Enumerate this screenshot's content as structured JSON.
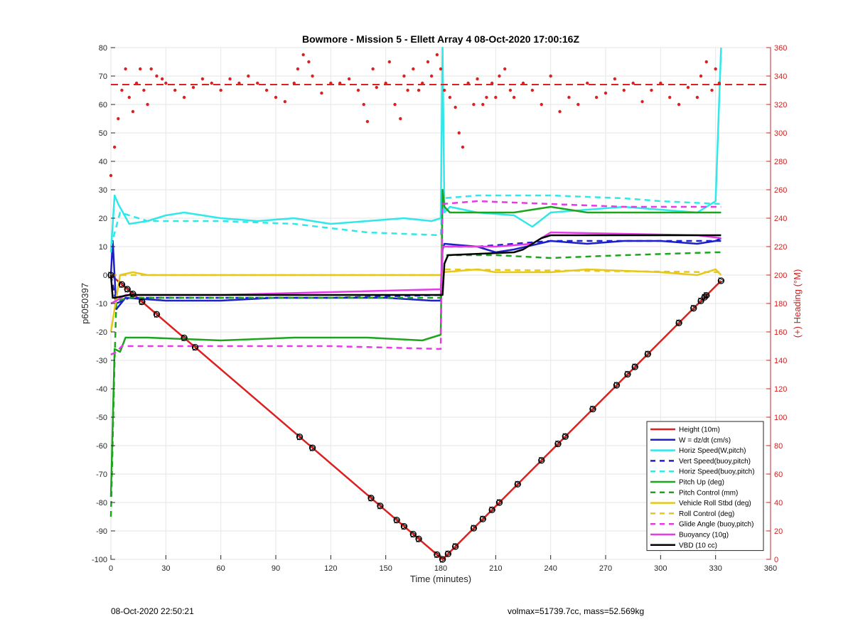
{
  "chart_data": {
    "type": "line",
    "title": "Bowmore - Mission 5 - Ellett Array 4 08-Oct-2020 17:00:16Z",
    "xlabel": "Time (minutes)",
    "ylabel": "p6050397",
    "y2label": "(+) Heading (°M)",
    "xlim": [
      0,
      360
    ],
    "ylim": [
      -100,
      80
    ],
    "y2lim": [
      0,
      360
    ],
    "xticks": [
      0,
      30,
      60,
      90,
      120,
      150,
      180,
      210,
      240,
      270,
      300,
      330,
      360
    ],
    "yticks": [
      -100,
      -90,
      -80,
      -70,
      -60,
      -50,
      -40,
      -30,
      -20,
      -10,
      0,
      10,
      20,
      30,
      40,
      50,
      60,
      70,
      80
    ],
    "y2ticks": [
      0,
      20,
      40,
      60,
      80,
      100,
      120,
      140,
      160,
      180,
      200,
      220,
      240,
      260,
      280,
      300,
      320,
      340,
      360
    ],
    "grid": true,
    "legend_position": "bottom-right",
    "colors": {
      "red": "#dd1f1f",
      "blue": "#1c20c8",
      "cyan": "#2fe8ea",
      "green": "#1ea51e",
      "yellow": "#e6c81a",
      "magenta": "#e63ae6",
      "black": "#000000",
      "heading_axis": "#cc2222"
    },
    "series": [
      {
        "name": "Height (10m)",
        "color": "red",
        "style": "solid",
        "x": [
          0,
          181,
          333
        ],
        "y": [
          0,
          -100,
          -2
        ]
      },
      {
        "name": "W = dz/dt (cm/s)",
        "color": "blue",
        "style": "solid",
        "x": [
          0,
          1,
          3,
          8,
          30,
          60,
          90,
          120,
          150,
          175,
          180,
          181,
          182,
          200,
          210,
          220,
          240,
          260,
          280,
          300,
          320,
          330,
          333
        ],
        "y": [
          0,
          12,
          -12,
          -8,
          -9,
          -9,
          -8,
          -8,
          -8,
          -9,
          -9,
          9,
          11,
          10,
          8,
          9,
          12,
          11,
          12,
          12,
          11,
          12,
          13
        ]
      },
      {
        "name": "Horiz Speed(W,pitch)",
        "color": "cyan",
        "style": "solid",
        "x": [
          0,
          2,
          4,
          10,
          20,
          30,
          40,
          60,
          80,
          100,
          120,
          140,
          160,
          175,
          180,
          181,
          182,
          185,
          200,
          220,
          230,
          240,
          260,
          280,
          300,
          320,
          330,
          333
        ],
        "y": [
          8,
          28,
          25,
          18,
          19,
          21,
          22,
          20,
          19,
          20,
          18,
          19,
          20,
          19,
          20,
          80,
          22,
          24,
          22,
          21,
          17,
          22,
          23,
          24,
          23,
          22,
          26,
          80
        ]
      },
      {
        "name": "Vert Speed(buoy,pitch)",
        "color": "blue",
        "style": "dashed",
        "x": [
          0,
          3,
          10,
          60,
          120,
          180,
          181,
          200,
          240,
          300,
          333
        ],
        "y": [
          0,
          -10,
          -8,
          -8,
          -8,
          -7,
          10,
          10,
          12,
          12,
          12
        ]
      },
      {
        "name": "Horiz Speed(buoy,pitch)",
        "color": "cyan",
        "style": "dashed",
        "x": [
          0,
          5,
          20,
          60,
          100,
          140,
          180,
          181,
          200,
          240,
          280,
          300,
          333
        ],
        "y": [
          10,
          22,
          19,
          19,
          18,
          15,
          14,
          27,
          28,
          28,
          27,
          26,
          25
        ]
      },
      {
        "name": "Pitch Up (deg)",
        "color": "green",
        "style": "solid",
        "x": [
          0,
          2,
          5,
          8,
          20,
          60,
          100,
          140,
          170,
          175,
          180,
          181,
          182,
          185,
          200,
          220,
          240,
          260,
          280,
          300,
          320,
          333
        ],
        "y": [
          -78,
          -26,
          -27,
          -22,
          -22,
          -23,
          -22,
          -22,
          -23,
          -22,
          -21,
          30,
          24,
          22,
          22,
          22,
          24,
          22,
          22,
          22,
          22,
          22
        ]
      },
      {
        "name": "Pitch Control (mm)",
        "color": "green",
        "style": "dashed",
        "x": [
          0,
          2,
          3,
          10,
          180,
          181,
          210,
          240,
          280,
          330,
          333
        ],
        "y": [
          -85,
          -30,
          -9,
          -8,
          -8,
          7,
          7,
          6,
          7,
          8,
          8
        ]
      },
      {
        "name": "Vehicle Roll Stbd (deg)",
        "color": "yellow",
        "style": "solid",
        "x": [
          0,
          5,
          12,
          20,
          40,
          60,
          100,
          140,
          160,
          180,
          181,
          200,
          210,
          240,
          260,
          300,
          320,
          330,
          333
        ],
        "y": [
          -20,
          0,
          1,
          0,
          0,
          0,
          0,
          0,
          0,
          0,
          1,
          2,
          1,
          1,
          2,
          1,
          0,
          2,
          0
        ]
      },
      {
        "name": "Roll Control (deg)",
        "color": "yellow",
        "style": "dashed",
        "x": [
          0,
          5,
          180,
          181,
          333
        ],
        "y": [
          0,
          0,
          0,
          2,
          1
        ]
      },
      {
        "name": "Glide Angle (buoy,pitch)",
        "color": "magenta",
        "style": "dashed",
        "x": [
          0,
          3,
          6,
          60,
          120,
          180,
          181,
          200,
          240,
          280,
          333
        ],
        "y": [
          -28,
          -27,
          -25,
          -25,
          -25,
          -26,
          25,
          26,
          25,
          24,
          24
        ]
      },
      {
        "name": "Buoyancy (10g)",
        "color": "magenta",
        "style": "solid",
        "x": [
          0,
          3,
          8,
          60,
          120,
          180,
          181,
          210,
          230,
          240,
          320,
          333
        ],
        "y": [
          -10,
          -9,
          -7,
          -7,
          -6,
          -5,
          10,
          10,
          11,
          15,
          14,
          13
        ]
      },
      {
        "name": "VBD (10 cc)",
        "color": "black",
        "style": "solid",
        "x": [
          0,
          1,
          2,
          10,
          180,
          181,
          182,
          184,
          220,
          225,
          235,
          240,
          330,
          333
        ],
        "y": [
          0,
          -8,
          -8,
          -7,
          -7,
          -7,
          4,
          7,
          8,
          9,
          13,
          14,
          14,
          14
        ]
      }
    ],
    "heading": {
      "name": "Heading",
      "color": "red",
      "axis": "right",
      "mean_deg": 334,
      "x": [
        0,
        2,
        4,
        6,
        8,
        10,
        12,
        14,
        16,
        18,
        20,
        22,
        25,
        28,
        30,
        35,
        40,
        45,
        50,
        55,
        60,
        65,
        70,
        75,
        80,
        85,
        90,
        95,
        100,
        102,
        105,
        108,
        110,
        115,
        120,
        125,
        130,
        135,
        138,
        140,
        143,
        145,
        150,
        152,
        155,
        158,
        160,
        162,
        165,
        168,
        170,
        173,
        175,
        178,
        180,
        182,
        185,
        188,
        190,
        192,
        195,
        198,
        200,
        203,
        205,
        208,
        210,
        212,
        215,
        218,
        220,
        225,
        230,
        235,
        240,
        245,
        250,
        255,
        260,
        265,
        270,
        275,
        280,
        285,
        290,
        295,
        300,
        305,
        310,
        315,
        320,
        322,
        325,
        328,
        330,
        332
      ],
      "y": [
        270,
        290,
        310,
        330,
        345,
        325,
        315,
        335,
        345,
        330,
        320,
        345,
        340,
        338,
        335,
        330,
        325,
        332,
        338,
        335,
        330,
        338,
        335,
        340,
        335,
        330,
        325,
        322,
        335,
        345,
        355,
        350,
        340,
        328,
        335,
        335,
        338,
        330,
        320,
        308,
        345,
        332,
        335,
        350,
        320,
        310,
        340,
        330,
        345,
        330,
        335,
        350,
        340,
        355,
        345,
        330,
        325,
        318,
        300,
        290,
        335,
        320,
        338,
        320,
        325,
        335,
        325,
        340,
        345,
        330,
        325,
        335,
        330,
        320,
        340,
        315,
        325,
        320,
        335,
        325,
        328,
        338,
        330,
        335,
        322,
        330,
        335,
        325,
        320,
        332,
        325,
        340,
        350,
        330,
        345,
        335
      ]
    },
    "height_markers_x": [
      0,
      6,
      9,
      12,
      17,
      25,
      40,
      46,
      103,
      110,
      142,
      147,
      156,
      160,
      165,
      168,
      178,
      181,
      184,
      188,
      198,
      203,
      208,
      212,
      222,
      235,
      244,
      248,
      263,
      276,
      282,
      286,
      293,
      310,
      318,
      322,
      324,
      325,
      333
    ],
    "legend": [
      {
        "label": "Height (10m)",
        "color": "red",
        "style": "solid"
      },
      {
        "label": "W = dz/dt (cm/s)",
        "color": "blue",
        "style": "solid"
      },
      {
        "label": "Horiz Speed(W,pitch)",
        "color": "cyan",
        "style": "solid"
      },
      {
        "label": "Vert Speed(buoy,pitch)",
        "color": "blue",
        "style": "dashed"
      },
      {
        "label": "Horiz Speed(buoy,pitch)",
        "color": "cyan",
        "style": "dashed"
      },
      {
        "label": "Pitch Up (deg)",
        "color": "green",
        "style": "solid"
      },
      {
        "label": "Pitch Control (mm)",
        "color": "green",
        "style": "dashed"
      },
      {
        "label": "Vehicle Roll Stbd (deg)",
        "color": "yellow",
        "style": "solid"
      },
      {
        "label": "Roll Control (deg)",
        "color": "yellow",
        "style": "dashed"
      },
      {
        "label": "Glide Angle (buoy,pitch)",
        "color": "magenta",
        "style": "dashed"
      },
      {
        "label": "Buoyancy (10g)",
        "color": "magenta",
        "style": "solid"
      },
      {
        "label": "VBD (10 cc)",
        "color": "black",
        "style": "solid"
      }
    ]
  },
  "footer": {
    "timestamp": "08-Oct-2020 22:50:21",
    "stats": "volmax=51739.7cc, mass=52.569kg"
  }
}
